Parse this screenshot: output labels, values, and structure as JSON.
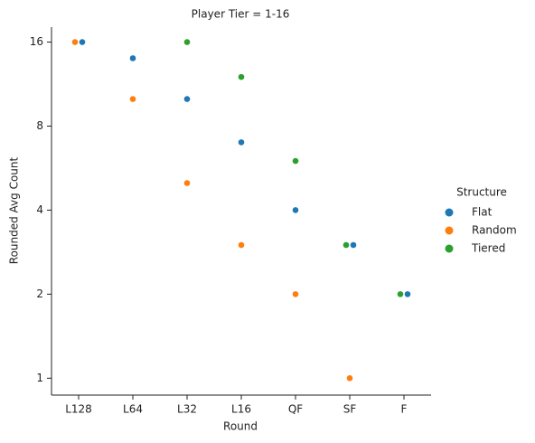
{
  "chart_data": {
    "type": "strip",
    "title": "Player Tier = 1-16",
    "x_label": "Round",
    "y_label": "Rounded Avg Count",
    "categories": [
      "L128",
      "L64",
      "L32",
      "L16",
      "QF",
      "SF",
      "F"
    ],
    "series": [
      {
        "name": "Flat",
        "color": "#1f77b4",
        "values": [
          16,
          14,
          10,
          7,
          4,
          3,
          2
        ]
      },
      {
        "name": "Random",
        "color": "#ff7f0e",
        "values": [
          16,
          10,
          5,
          3,
          2,
          1,
          null
        ]
      },
      {
        "name": "Tiered",
        "color": "#2ca02c",
        "values": [
          null,
          null,
          16,
          12,
          6,
          3,
          2
        ]
      }
    ],
    "ylim": [
      0.87,
      18.1
    ],
    "yticks": [
      1,
      2,
      4,
      8,
      16
    ],
    "log_scale": true,
    "legend_title": "Structure",
    "legend_position": "right"
  }
}
